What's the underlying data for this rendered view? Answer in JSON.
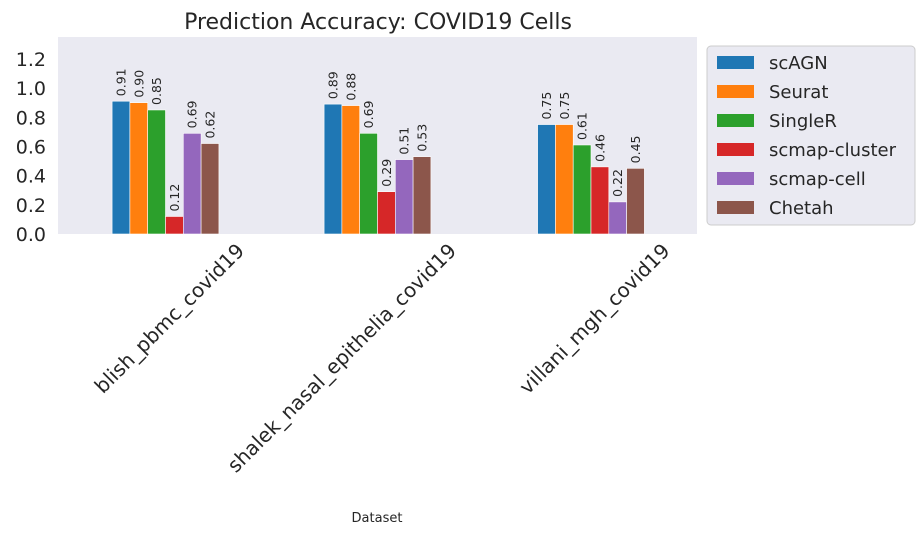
{
  "chart_data": {
    "type": "bar",
    "title": "Prediction Accuracy: COVID19 Cells",
    "xlabel": "Dataset",
    "ylabel": "",
    "ylim": [
      0,
      1.35
    ],
    "yticks": [
      "0.0",
      "0.2",
      "0.4",
      "0.6",
      "0.8",
      "1.0",
      "1.2"
    ],
    "grid": false,
    "legend_position": "outside-right",
    "categories": [
      "blish_pbmc_covid19",
      "shalek_nasal_epithelia_covid19",
      "villani_mgh_covid19"
    ],
    "series": [
      {
        "name": "scAGN",
        "color": "#1f77b4",
        "values": [
          0.91,
          0.89,
          0.75
        ],
        "labels": [
          "0.91",
          "0.89",
          "0.75"
        ]
      },
      {
        "name": "Seurat",
        "color": "#ff7f0e",
        "values": [
          0.9,
          0.88,
          0.75
        ],
        "labels": [
          "0.90",
          "0.88",
          "0.75"
        ]
      },
      {
        "name": "SingleR",
        "color": "#2ca02c",
        "values": [
          0.85,
          0.69,
          0.61
        ],
        "labels": [
          "0.85",
          "0.69",
          "0.61"
        ]
      },
      {
        "name": "scmap-cluster",
        "color": "#d62728",
        "values": [
          0.12,
          0.29,
          0.46
        ],
        "labels": [
          "0.12",
          "0.29",
          "0.46"
        ]
      },
      {
        "name": "scmap-cell",
        "color": "#9467bd",
        "values": [
          0.69,
          0.51,
          0.22
        ],
        "labels": [
          "0.69",
          "0.51",
          "0.22"
        ]
      },
      {
        "name": "Chetah",
        "color": "#8c564b",
        "values": [
          0.62,
          0.53,
          0.45
        ],
        "labels": [
          "0.62",
          "0.53",
          "0.45"
        ]
      }
    ]
  }
}
